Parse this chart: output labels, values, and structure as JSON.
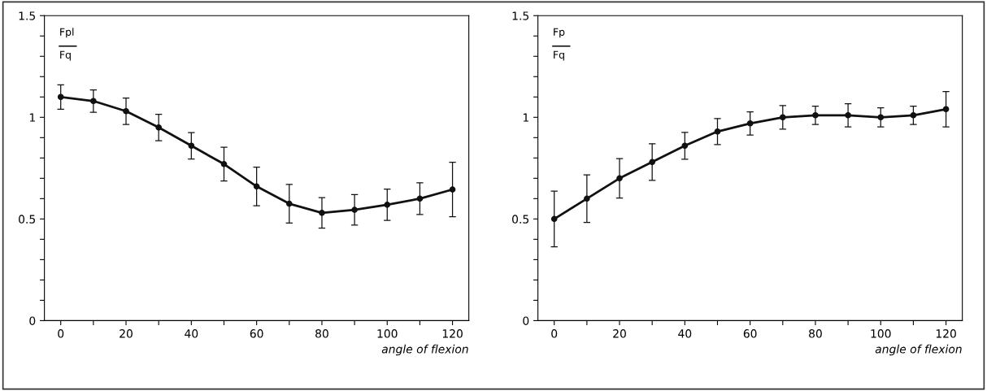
{
  "chart_data": [
    {
      "type": "line",
      "xlabel": "angle of flexion",
      "ylabel": "Fpl\nFq",
      "marker": "circle",
      "line_style": "solid",
      "grid": false,
      "legend": false,
      "x": [
        0,
        10,
        20,
        30,
        40,
        50,
        60,
        70,
        80,
        90,
        100,
        110,
        120
      ],
      "series": [
        {
          "color": "#111111",
          "values": [
            1.1,
            1.08,
            1.03,
            0.95,
            0.86,
            0.77,
            0.66,
            0.575,
            0.53,
            0.545,
            0.57,
            0.6,
            0.645
          ],
          "errors": [
            0.06,
            0.055,
            0.065,
            0.065,
            0.065,
            0.083,
            0.095,
            0.095,
            0.075,
            0.075,
            0.077,
            0.078,
            0.134
          ]
        }
      ],
      "xlim": [
        -5,
        125
      ],
      "ylim": [
        0,
        1.5
      ],
      "xticks": [
        0,
        {
          "value": 10,
          "label": null
        },
        20,
        {
          "value": 30,
          "label": null
        },
        40,
        {
          "value": 50,
          "label": null
        },
        60,
        {
          "value": 70,
          "label": null
        },
        80,
        {
          "value": 90,
          "label": null
        },
        100,
        {
          "value": 110,
          "label": null
        },
        120
      ],
      "yticks": [
        0,
        {
          "value": 0.1,
          "label": null
        },
        {
          "value": 0.2,
          "label": null
        },
        {
          "value": 0.3,
          "label": null
        },
        {
          "value": 0.4,
          "label": null
        },
        0.5,
        {
          "value": 0.6,
          "label": null
        },
        {
          "value": 0.7,
          "label": null
        },
        {
          "value": 0.8,
          "label": null
        },
        {
          "value": 0.9,
          "label": null
        },
        1,
        {
          "value": 1.1,
          "label": null
        },
        {
          "value": 1.2,
          "label": null
        },
        {
          "value": 1.3,
          "label": null
        },
        {
          "value": 1.4,
          "label": null
        },
        1.5
      ]
    },
    {
      "type": "line",
      "xlabel": "angle of flexion",
      "ylabel": "Fp\nFq",
      "marker": "circle",
      "line_style": "solid",
      "grid": false,
      "legend": false,
      "x": [
        0,
        10,
        20,
        30,
        40,
        50,
        60,
        70,
        80,
        90,
        100,
        110,
        120
      ],
      "series": [
        {
          "color": "#111111",
          "values": [
            0.5,
            0.6,
            0.7,
            0.78,
            0.86,
            0.93,
            0.97,
            1.0,
            1.01,
            1.01,
            1.0,
            1.01,
            1.04
          ],
          "errors": [
            0.137,
            0.117,
            0.097,
            0.09,
            0.066,
            0.064,
            0.057,
            0.058,
            0.045,
            0.057,
            0.047,
            0.045,
            0.087
          ]
        }
      ],
      "xlim": [
        -5,
        125
      ],
      "ylim": [
        0,
        1.5
      ],
      "xticks": [
        0,
        {
          "value": 10,
          "label": null
        },
        20,
        {
          "value": 30,
          "label": null
        },
        40,
        {
          "value": 50,
          "label": null
        },
        60,
        {
          "value": 70,
          "label": null
        },
        80,
        {
          "value": 90,
          "label": null
        },
        100,
        {
          "value": 110,
          "label": null
        },
        120
      ],
      "yticks": [
        0,
        {
          "value": 0.1,
          "label": null
        },
        {
          "value": 0.2,
          "label": null
        },
        {
          "value": 0.3,
          "label": null
        },
        {
          "value": 0.4,
          "label": null
        },
        0.5,
        {
          "value": 0.6,
          "label": null
        },
        {
          "value": 0.7,
          "label": null
        },
        {
          "value": 0.8,
          "label": null
        },
        {
          "value": 0.9,
          "label": null
        },
        1,
        {
          "value": 1.1,
          "label": null
        },
        {
          "value": 1.2,
          "label": null
        },
        {
          "value": 1.3,
          "label": null
        },
        {
          "value": 1.4,
          "label": null
        },
        1.5
      ]
    }
  ]
}
